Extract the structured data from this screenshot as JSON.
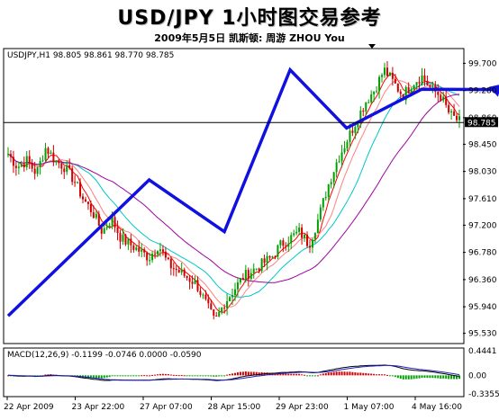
{
  "header": {
    "title": "USD/JPY 1小时图交易参考",
    "subtitle": "2009年5月5日   凯斯顿: 周游 ZHOU You"
  },
  "chart_data": [
    {
      "type": "candlestick",
      "info_label": "USDJPY,H1  98.805 98.861 98.770 98.785",
      "ylim": [
        95.4,
        99.9
      ],
      "yticks": [
        "99.700",
        "99.280",
        "98.860",
        "98.450",
        "98.030",
        "97.610",
        "97.200",
        "96.780",
        "96.360",
        "95.940",
        "95.530"
      ],
      "current_price": 98.785,
      "current_price_label": "98.785",
      "xlabels": [
        "22 Apr 2009",
        "23 Apr 22:00",
        "27 Apr 07:00",
        "28 Apr 15:00",
        "29 Apr 23:00",
        "1 May 07:00",
        "4 May 16:00"
      ],
      "price_path": [
        98.3,
        98.1,
        98.2,
        98.0,
        98.4,
        98.2,
        98.1,
        97.9,
        97.6,
        97.4,
        97.1,
        97.3,
        97.0,
        96.9,
        96.8,
        96.7,
        96.9,
        96.6,
        96.5,
        96.4,
        96.3,
        96.0,
        95.7,
        96.0,
        96.2,
        96.4,
        96.5,
        96.6,
        96.7,
        96.9,
        97.0,
        97.1,
        96.9,
        97.3,
        97.8,
        98.2,
        98.5,
        98.8,
        99.1,
        99.3,
        99.6,
        99.4,
        99.2,
        99.4,
        99.5,
        99.3,
        99.2,
        98.9,
        98.8
      ],
      "trend_arrow": {
        "x": [
          0,
          15,
          23,
          30,
          36,
          44,
          50
        ],
        "y": [
          95.8,
          97.9,
          97.1,
          99.6,
          98.7,
          99.3,
          99.1
        ]
      },
      "moving_average_colors": [
        "#ff0000",
        "#ff8080",
        "#00c8c8",
        "#a000a0"
      ]
    },
    {
      "type": "macd",
      "info_label": "MACD(12,26,9) -0.1199 -0.0746 0.0000 -0.0590",
      "yticks": [
        "0.4441",
        "0.00",
        "-0.3355"
      ],
      "ylim": [
        -0.3355,
        0.4441
      ]
    }
  ]
}
